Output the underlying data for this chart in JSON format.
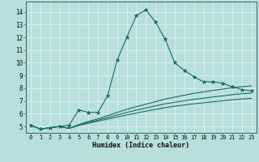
{
  "xlabel": "Humidex (Indice chaleur)",
  "bg_color": "#b8dede",
  "grid_color": "#d8eeee",
  "line_color": "#1a6b6b",
  "xlim": [
    -0.5,
    23.5
  ],
  "ylim": [
    4.5,
    14.8
  ],
  "xticks": [
    0,
    1,
    2,
    3,
    4,
    5,
    6,
    7,
    8,
    9,
    10,
    11,
    12,
    13,
    14,
    15,
    16,
    17,
    18,
    19,
    20,
    21,
    22,
    23
  ],
  "yticks": [
    5,
    6,
    7,
    8,
    9,
    10,
    11,
    12,
    13,
    14
  ],
  "lines": [
    {
      "x": [
        0,
        1,
        2,
        3,
        4,
        5,
        6,
        7,
        8,
        9,
        10,
        11,
        12,
        13,
        14,
        15,
        16,
        17,
        18,
        19,
        20,
        21,
        22,
        23
      ],
      "y": [
        5.1,
        4.8,
        4.9,
        5.0,
        5.1,
        6.3,
        6.1,
        6.1,
        7.4,
        10.2,
        12.0,
        13.7,
        14.15,
        13.2,
        11.85,
        10.0,
        9.4,
        8.9,
        8.5,
        8.5,
        8.4,
        8.1,
        7.9,
        7.8
      ],
      "marker": "*",
      "markersize": 3.5
    },
    {
      "x": [
        0,
        1,
        2,
        3,
        4,
        5,
        6,
        7,
        8,
        9,
        10,
        11,
        12,
        13,
        14,
        15,
        16,
        17,
        18,
        19,
        20,
        21,
        22,
        23
      ],
      "y": [
        5.1,
        4.8,
        4.9,
        5.0,
        4.85,
        5.15,
        5.4,
        5.6,
        5.85,
        6.1,
        6.35,
        6.55,
        6.75,
        6.95,
        7.15,
        7.3,
        7.45,
        7.6,
        7.72,
        7.84,
        7.93,
        8.05,
        8.12,
        8.18
      ],
      "marker": null
    },
    {
      "x": [
        0,
        1,
        2,
        3,
        4,
        5,
        6,
        7,
        8,
        9,
        10,
        11,
        12,
        13,
        14,
        15,
        16,
        17,
        18,
        19,
        20,
        21,
        22,
        23
      ],
      "y": [
        5.1,
        4.8,
        4.9,
        5.0,
        4.85,
        5.1,
        5.3,
        5.5,
        5.7,
        5.9,
        6.1,
        6.28,
        6.45,
        6.62,
        6.78,
        6.9,
        7.02,
        7.13,
        7.22,
        7.32,
        7.4,
        7.5,
        7.57,
        7.62
      ],
      "marker": null
    },
    {
      "x": [
        0,
        1,
        2,
        3,
        4,
        5,
        6,
        7,
        8,
        9,
        10,
        11,
        12,
        13,
        14,
        15,
        16,
        17,
        18,
        19,
        20,
        21,
        22,
        23
      ],
      "y": [
        5.1,
        4.8,
        4.9,
        5.0,
        4.85,
        5.08,
        5.25,
        5.42,
        5.58,
        5.74,
        5.9,
        6.05,
        6.2,
        6.34,
        6.48,
        6.59,
        6.69,
        6.78,
        6.86,
        6.94,
        7.01,
        7.1,
        7.16,
        7.2
      ],
      "marker": null
    }
  ]
}
